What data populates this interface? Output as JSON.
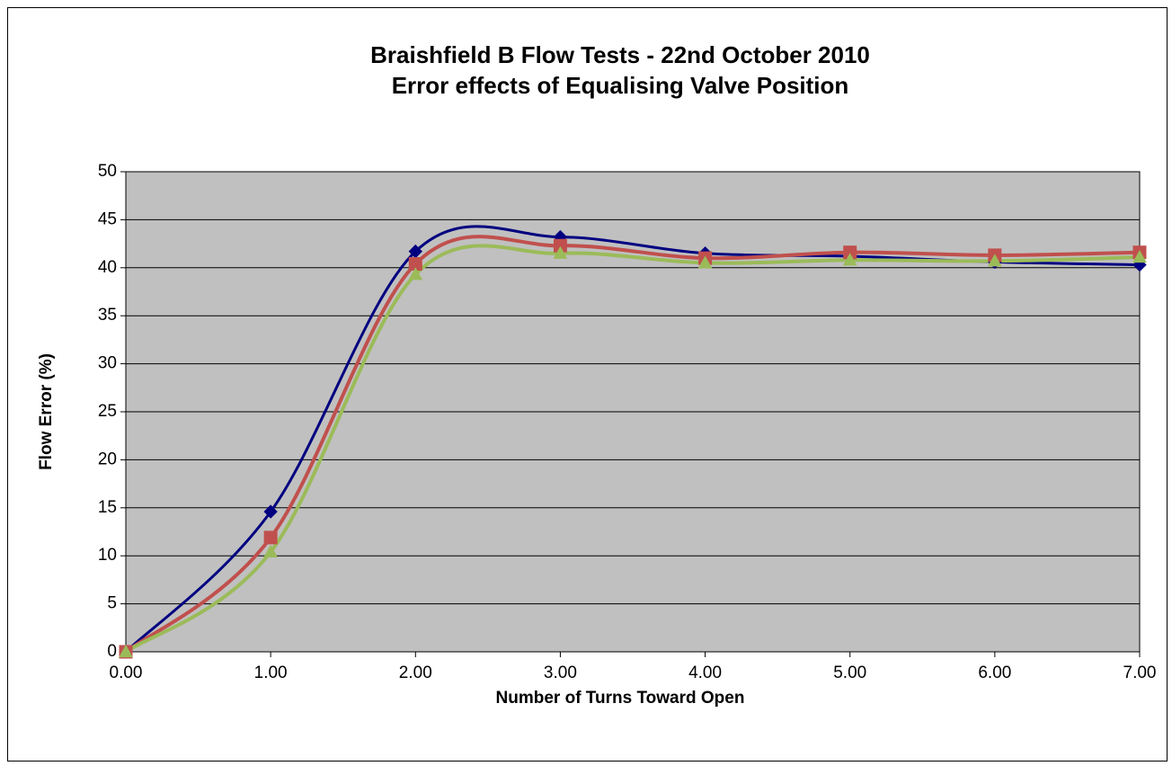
{
  "chart_data": {
    "type": "line",
    "title": "Braishfield B Flow Tests - 22nd October 2010",
    "subtitle": "Error effects of Equalising Valve Position",
    "x_label": "Number of Turns Toward Open",
    "y_label": "Flow Error (%)",
    "x": [
      0,
      1,
      2,
      3,
      4,
      5,
      6,
      7
    ],
    "series": [
      {
        "color": "#000080",
        "marker": "diamond",
        "values": [
          0,
          14.6,
          41.7,
          43.2,
          41.5,
          41.2,
          40.6,
          40.3
        ]
      },
      {
        "color": "#c0504d",
        "marker": "square",
        "values": [
          0,
          11.9,
          40.4,
          42.3,
          41.0,
          41.6,
          41.3,
          41.6
        ]
      },
      {
        "color": "#9bbb59",
        "marker": "triangle",
        "values": [
          0,
          10.4,
          39.3,
          41.5,
          40.5,
          40.8,
          40.7,
          41.1
        ]
      }
    ],
    "smooth": true,
    "xlim": [
      0,
      7
    ],
    "xticks": [
      {
        "value": 0,
        "label": "0.00"
      },
      {
        "value": 1,
        "label": "1.00"
      },
      {
        "value": 2,
        "label": "2.00"
      },
      {
        "value": 3,
        "label": "3.00"
      },
      {
        "value": 4,
        "label": "4.00"
      },
      {
        "value": 5,
        "label": "5.00"
      },
      {
        "value": 6,
        "label": "6.00"
      },
      {
        "value": 7,
        "label": "7.00"
      }
    ],
    "ylim": [
      0,
      50
    ],
    "yticks": [
      0,
      5,
      10,
      15,
      20,
      25,
      30,
      35,
      40,
      45,
      50
    ],
    "grid": true
  }
}
